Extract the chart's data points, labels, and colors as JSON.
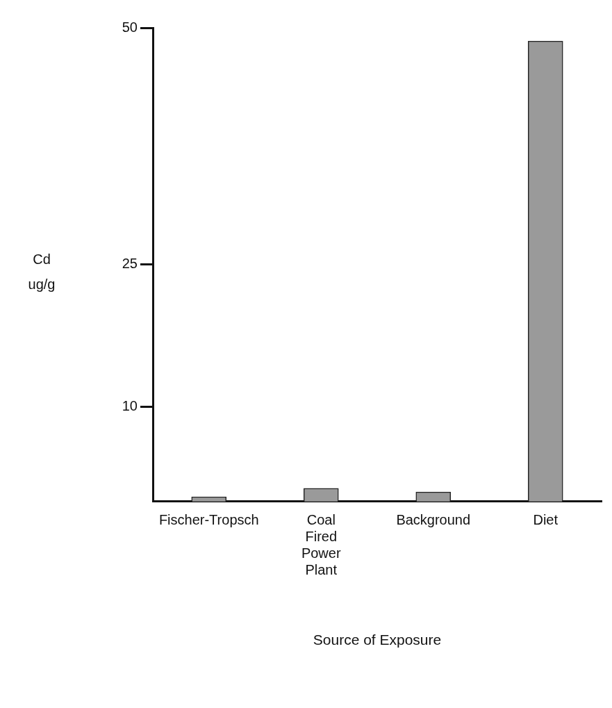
{
  "chart_data": {
    "type": "bar",
    "xlabel": "Source of Exposure",
    "ylabel": "Cd ug/g",
    "categories": [
      "Fischer-Tropsch",
      "Coal Fired Power Plant",
      "Background",
      "Diet"
    ],
    "values": [
      0.5,
      1.4,
      1.0,
      48.6
    ],
    "color": "#9a9a9a",
    "ylim": [
      0,
      50
    ],
    "yticks": [
      10,
      25,
      50
    ],
    "grid": false,
    "legend": false
  }
}
